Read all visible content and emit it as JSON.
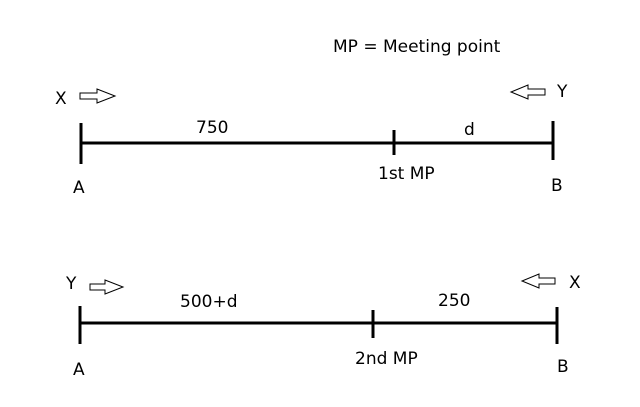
{
  "legend": "MP = Meeting point",
  "first_meeting": {
    "left_label": "X",
    "right_label": "Y",
    "start_point": "A",
    "end_point": "B",
    "meeting_label": "1st MP",
    "left_segment": "750",
    "right_segment": "d"
  },
  "second_meeting": {
    "left_label": "Y",
    "right_label": "X",
    "start_point": "A",
    "end_point": "B",
    "meeting_label": "2nd MP",
    "left_segment": "500+d",
    "right_segment": "250"
  }
}
